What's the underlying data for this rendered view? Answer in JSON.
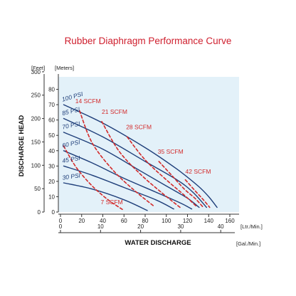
{
  "chart_data": {
    "type": "line",
    "title": "Rubber Diaphragm Performance Curve",
    "xlabel": "WATER DISCHARGE",
    "ylabel": "DISCHARGE HEAD",
    "x_units": {
      "primary": "[Ltr./Min.]",
      "secondary": "[Gal./Min.]"
    },
    "y_units": {
      "primary": "[Meters]",
      "secondary": "[Feet]"
    },
    "xlim": [
      0,
      160
    ],
    "ylim": [
      0,
      90
    ],
    "x_ticks": [
      0,
      20,
      40,
      60,
      80,
      100,
      120,
      140,
      160
    ],
    "x_ticks_gal": [
      0,
      10,
      20,
      30,
      40
    ],
    "y_ticks": [
      0,
      10,
      20,
      30,
      40,
      50,
      60,
      70,
      80
    ],
    "y_ticks_feet": [
      0,
      50,
      100,
      150,
      200,
      250,
      300
    ],
    "grid": false,
    "colors": {
      "title": "#cf1f2e",
      "plot_background": "#e3f1f9",
      "pressure_curves": "#1f3f7a",
      "air_consumption_curves": "#d32a2a"
    },
    "series": [
      {
        "name": "100 PSI",
        "kind": "pressure",
        "x": [
          3,
          40,
          80,
          110,
          130,
          140,
          148
        ],
        "y": [
          70,
          58,
          42,
          28,
          17,
          10,
          3
        ]
      },
      {
        "name": "85 PSI",
        "kind": "pressure",
        "x": [
          3,
          40,
          80,
          110,
          125,
          138
        ],
        "y": [
          61,
          49,
          33,
          21,
          13,
          3
        ]
      },
      {
        "name": "70 PSI",
        "kind": "pressure",
        "x": [
          3,
          40,
          75,
          100,
          120,
          131
        ],
        "y": [
          52,
          41,
          27,
          17,
          9,
          3
        ]
      },
      {
        "name": "60 PSI",
        "kind": "pressure",
        "x": [
          3,
          30,
          60,
          90,
          113,
          124
        ],
        "y": [
          40,
          32,
          22,
          13,
          6,
          2
        ]
      },
      {
        "name": "45 PSI",
        "kind": "pressure",
        "x": [
          3,
          30,
          60,
          90,
          107
        ],
        "y": [
          30,
          24,
          16,
          8,
          2
        ]
      },
      {
        "name": "30 PSI",
        "kind": "pressure",
        "x": [
          3,
          30,
          60,
          82
        ],
        "y": [
          19,
          15,
          8,
          1
        ]
      },
      {
        "name": "7 SCFM",
        "kind": "air",
        "x": [
          3,
          15,
          30,
          45,
          60
        ],
        "y": [
          43,
          29,
          17,
          8,
          1
        ]
      },
      {
        "name": "14 SCFM",
        "kind": "air",
        "x": [
          18,
          30,
          50,
          70,
          88
        ],
        "y": [
          66,
          45,
          27,
          14,
          4
        ]
      },
      {
        "name": "21 SCFM",
        "kind": "air",
        "x": [
          39,
          55,
          75,
          95,
          113
        ],
        "y": [
          59,
          40,
          25,
          13,
          3
        ]
      },
      {
        "name": "28 SCFM",
        "kind": "air",
        "x": [
          63,
          80,
          100,
          117,
          128
        ],
        "y": [
          49,
          34,
          21,
          11,
          4
        ]
      },
      {
        "name": "35 SCFM",
        "kind": "air",
        "x": [
          93,
          105,
          117,
          127,
          135
        ],
        "y": [
          33,
          24,
          15,
          9,
          3
        ]
      },
      {
        "name": "42 SCFM",
        "kind": "air",
        "x": [
          118,
          127,
          135,
          141
        ],
        "y": [
          21,
          14,
          8,
          3
        ]
      }
    ]
  }
}
